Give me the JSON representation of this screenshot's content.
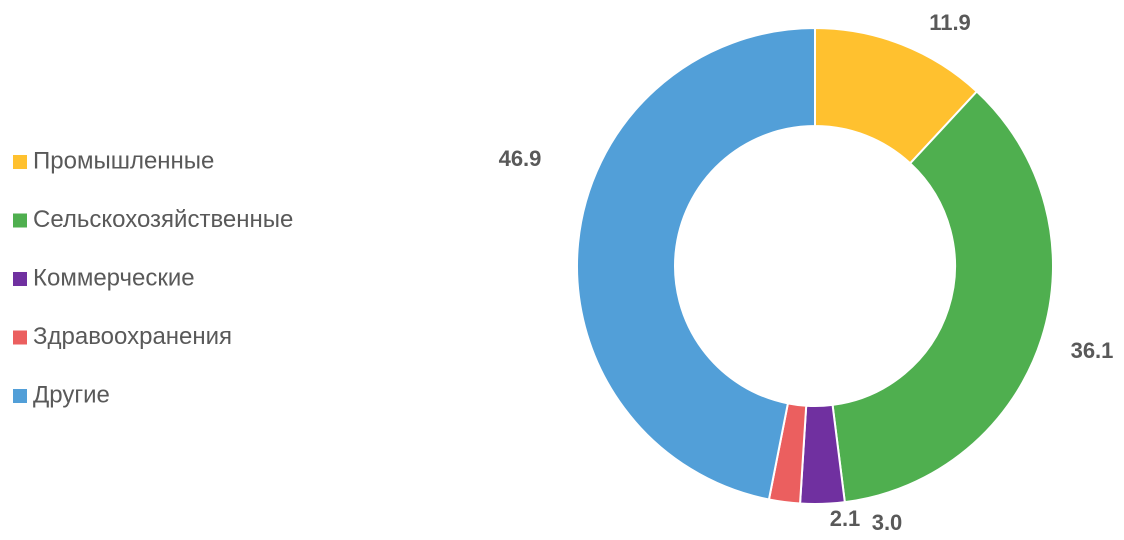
{
  "chart_data": {
    "type": "donut",
    "categories": [
      "Промышленные",
      "Сельскохозяйственные",
      "Коммерческие",
      "Здравоохранения",
      "Другие"
    ],
    "values": [
      11.9,
      36.1,
      3.0,
      2.1,
      46.9
    ],
    "value_labels": [
      "11.9",
      "36.1",
      "3.0",
      "2.1",
      "46.9"
    ],
    "colors": [
      "#ffc12f",
      "#4faf4f",
      "#7030a0",
      "#eb5f5f",
      "#529fd8"
    ],
    "legend": "left"
  }
}
